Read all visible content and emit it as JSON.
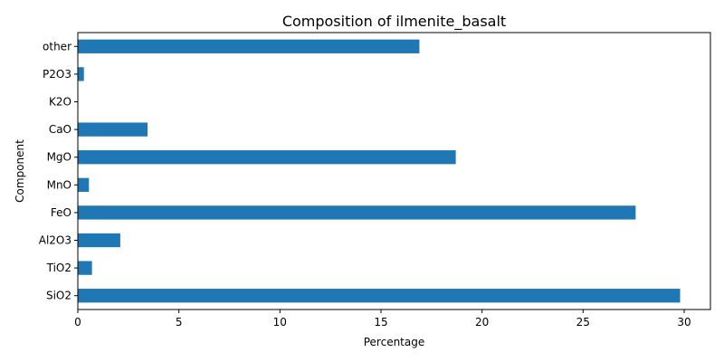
{
  "colors": {
    "bar": "#1f77b4",
    "axis": "#000000",
    "background": "#ffffff"
  },
  "chart_data": {
    "type": "bar",
    "orientation": "horizontal",
    "title": "Composition of ilmenite_basalt",
    "xlabel": "Percentage",
    "ylabel": "Component",
    "categories": [
      "SiO2",
      "TiO2",
      "Al2O3",
      "FeO",
      "MnO",
      "MgO",
      "CaO",
      "K2O",
      "P2O3",
      "other"
    ],
    "values": [
      29.8,
      0.7,
      2.1,
      27.6,
      0.55,
      18.7,
      3.45,
      0.0,
      0.3,
      16.9
    ],
    "xlim": [
      0,
      31.3
    ],
    "xticks": [
      0,
      5,
      10,
      15,
      20,
      25,
      30
    ],
    "grid": false,
    "legend": "none"
  }
}
